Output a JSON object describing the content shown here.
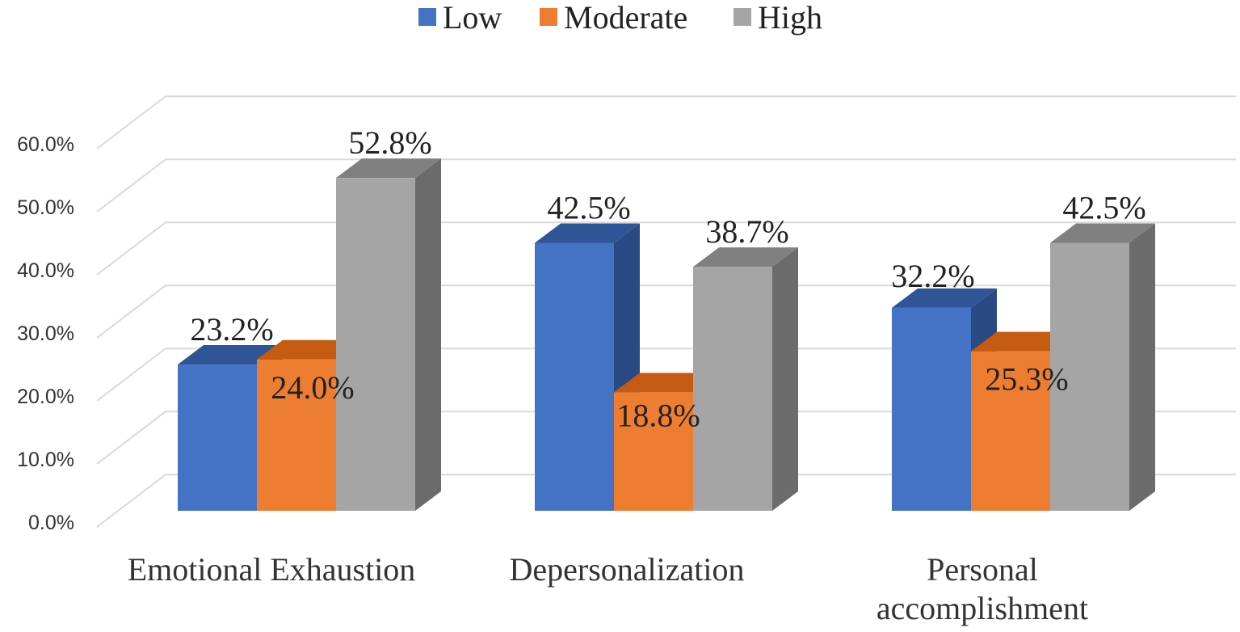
{
  "chart_data": {
    "type": "bar",
    "title": "",
    "xlabel": "",
    "ylabel": "",
    "ylim": [
      0,
      60
    ],
    "tick_labels": [
      "0.0%",
      "10.0%",
      "20.0%",
      "30.0%",
      "40.0%",
      "50.0%",
      "60.0%"
    ],
    "tick_values": [
      0,
      10,
      20,
      30,
      40,
      50,
      60
    ],
    "categories": [
      "Emotional Exhaustion",
      "Depersonalization",
      "Personal accomplishment"
    ],
    "category_lines": [
      [
        "Emotional Exhaustion"
      ],
      [
        "Depersonalization"
      ],
      [
        "Personal",
        "accomplishment"
      ]
    ],
    "legend_position": "top-center",
    "series": [
      {
        "name": "Low",
        "values": [
          23.2,
          42.5,
          32.2
        ],
        "labels": [
          "23.2%",
          "42.5%",
          "32.2%"
        ],
        "color": "#4472C4",
        "top_color": "#2F5597",
        "side_color": "#2A4A83"
      },
      {
        "name": "Moderate",
        "values": [
          24.0,
          18.8,
          25.3
        ],
        "labels": [
          "24.0%",
          "18.8%",
          "25.3%"
        ],
        "color": "#ED7D31",
        "top_color": "#C55A11",
        "side_color": "#B85A1F"
      },
      {
        "name": "High",
        "values": [
          52.8,
          38.7,
          42.5
        ],
        "labels": [
          "52.8%",
          "38.7%",
          "42.5%"
        ],
        "color": "#A5A5A5",
        "top_color": "#808080",
        "side_color": "#6B6B6B"
      }
    ],
    "gridlines": true,
    "style": "3d-clustered-column"
  }
}
